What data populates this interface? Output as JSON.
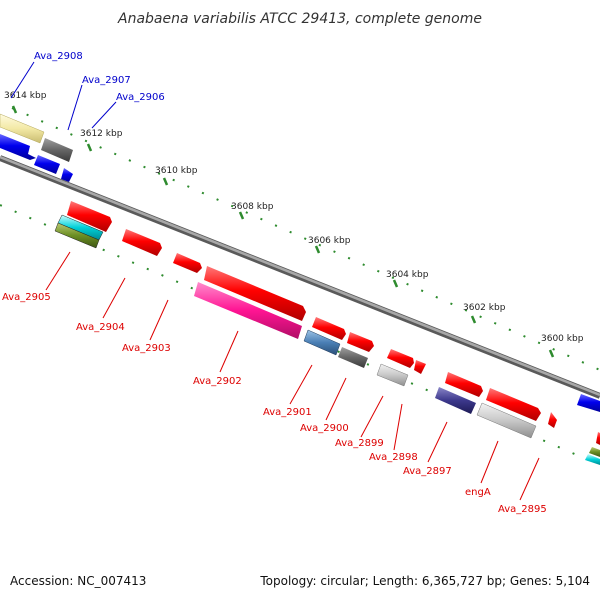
{
  "title": "Anabaena variabilis ATCC 29413, complete genome",
  "footer": {
    "accession": "Accession: NC_007413",
    "summary": "Topology: circular; Length: 6,365,727 bp; Genes: 5,104"
  },
  "colors": {
    "backbone": "#8a8a8a",
    "plus_label": "#0000cc",
    "minus_label": "#dd0000",
    "tick": "#2e8b2e"
  },
  "scale_labels": [
    "3614 kbp",
    "3612 kbp",
    "3610 kbp",
    "3608 kbp",
    "3606 kbp",
    "3604 kbp",
    "3602 kbp",
    "3600 kbp"
  ],
  "genes_plus": [
    {
      "label": "Ava_2908",
      "color": "#f3e9a6"
    },
    {
      "label": "Ava_2907",
      "color": "#666666"
    },
    {
      "label": "Ava_2906",
      "color": "#0000ee"
    }
  ],
  "genes_minus": [
    {
      "label": "Ava_2905",
      "color": "#ff0000"
    },
    {
      "label": "Ava_2904",
      "color": "#ff0000"
    },
    {
      "label": "Ava_2903",
      "color": "#ff0000"
    },
    {
      "label": "Ava_2902",
      "color": "#ff0000"
    },
    {
      "label": "Ava_2901",
      "color": "#ff0000"
    },
    {
      "label": "Ava_2900",
      "color": "#ff0000"
    },
    {
      "label": "Ava_2899",
      "color": "#ff0000"
    },
    {
      "label": "Ava_2898",
      "color": "#ff0000"
    },
    {
      "label": "Ava_2897",
      "color": "#ff0000"
    },
    {
      "label": "engA",
      "color": "#ff0000"
    },
    {
      "label": "Ava_2895",
      "color": "#ff0000"
    }
  ]
}
